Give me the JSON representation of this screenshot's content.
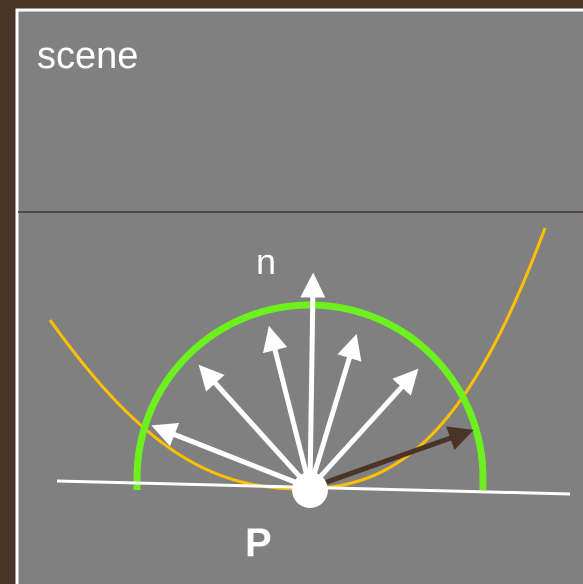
{
  "panel": {
    "title": "scene"
  },
  "labels": {
    "normal": "n",
    "point": "P"
  }
}
